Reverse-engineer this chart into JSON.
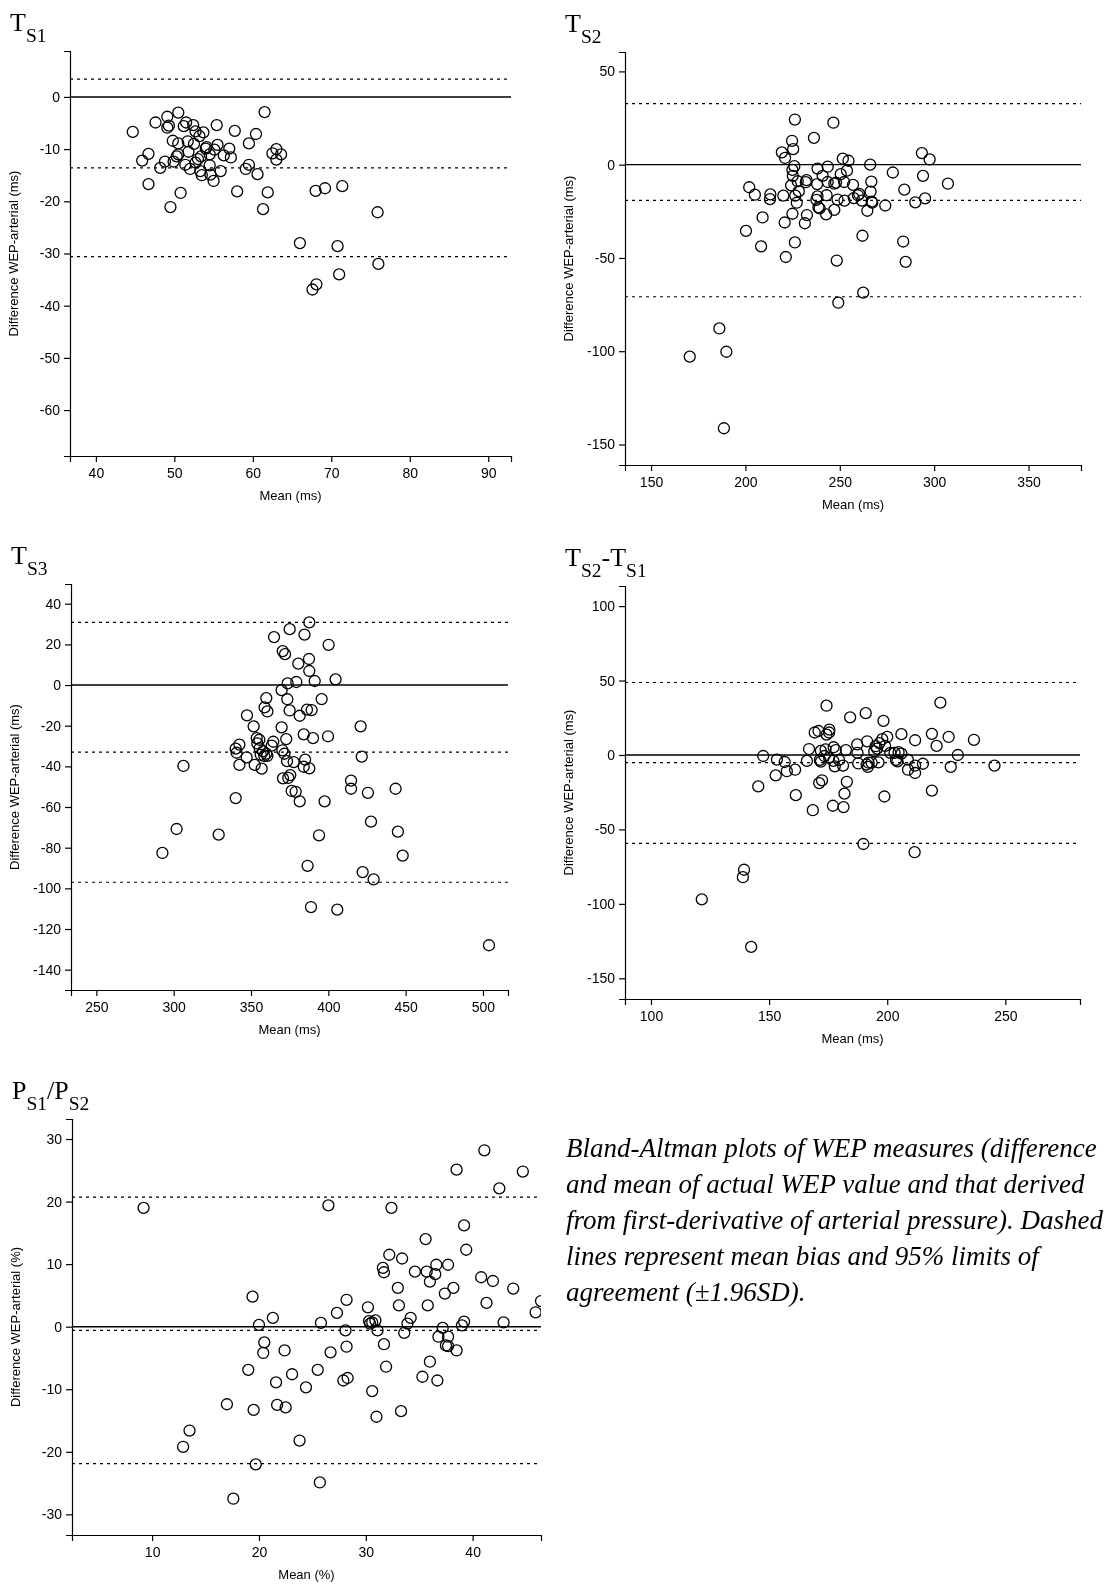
{
  "chart_data": [
    {
      "type": "scatter",
      "title": "T$_{S1}$",
      "xlabel": "Mean (ms)",
      "ylabel": "Difference WEP-arterial (ms)",
      "color": "#000000",
      "marker": "circle",
      "xlim": [
        36.7,
        92.9
      ],
      "ylim": [
        -68.8,
        8.8
      ],
      "xticks": [
        40,
        50,
        60,
        70,
        80,
        90
      ],
      "yticks": [
        -60,
        -50,
        -40,
        -30,
        -20,
        -10,
        0
      ],
      "x": [
        44.7,
        47.6,
        45.9,
        46.7,
        46.7,
        48.2,
        48.8,
        49.1,
        49.1,
        49.3,
        49.8,
        49.9,
        50.3,
        50.5,
        50.5,
        50.5,
        49.5,
        50.8,
        51.2,
        51.5,
        51.4,
        51.7,
        51.8,
        52.0,
        52.4,
        52.5,
        52.7,
        52.7,
        53.0,
        53.2,
        53.3,
        53.4,
        53.5,
        53.7,
        54.0,
        54.1,
        54.5,
        54.5,
        54.6,
        55.0,
        55.1,
        55.4,
        55.5,
        55.9,
        56.3,
        57.0,
        57.2,
        57.7,
        58.0,
        59.1,
        59.5,
        59.5,
        60.4,
        60.6,
        61.5,
        61.3,
        61.9,
        62.5,
        63.0,
        63.0,
        63.6,
        66.0,
        67.6,
        68.1,
        68.0,
        69.2,
        70.8,
        71.0,
        71.4,
        75.9,
        76.0
      ],
      "values": [
        -6.7,
        -4.9,
        -12.2,
        -10.9,
        -16.7,
        -13.6,
        -12.4,
        -3.8,
        -5.9,
        -5.5,
        -8.4,
        -12.4,
        -11.4,
        -11.0,
        -8.9,
        -3.0,
        -21.1,
        -18.4,
        -5.6,
        -4.9,
        -13.0,
        -8.5,
        -10.5,
        -13.8,
        -5.4,
        -9.0,
        -12.6,
        -6.6,
        -11.9,
        -7.5,
        -14.2,
        -11.4,
        -15.0,
        -6.8,
        -9.9,
        -9.6,
        -11.0,
        -13.1,
        -14.9,
        -16.1,
        -10.1,
        -5.4,
        -9.2,
        -14.2,
        -11.2,
        -9.9,
        -11.6,
        -6.5,
        -18.1,
        -13.8,
        -8.9,
        -13.0,
        -7.1,
        -14.8,
        -2.9,
        -21.5,
        -18.3,
        -10.8,
        -10.0,
        -12.0,
        -11.0,
        -28.0,
        -36.9,
        -35.9,
        -18.0,
        -17.5,
        -28.6,
        -34.0,
        -17.1,
        -22.1,
        -32.0
      ],
      "ref_lines": [
        {
          "axis": "y",
          "value": 0,
          "line_style": "solid"
        },
        {
          "axis": "y",
          "value": 3.4,
          "line_style": "dashed"
        },
        {
          "axis": "y",
          "value": -13.6,
          "line_style": "dashed"
        },
        {
          "axis": "y",
          "value": -30.6,
          "line_style": "dashed"
        }
      ]
    },
    {
      "type": "scatter",
      "title": "T$_{S2}$",
      "xlabel": "Mean (ms)",
      "ylabel": "Difference WEP-arterial (ms)",
      "color": "#000000",
      "marker": "circle",
      "xlim": [
        136.2,
        377.8
      ],
      "ylim": [
        -161,
        60.4
      ],
      "xticks": [
        150,
        200,
        250,
        300,
        350
      ],
      "yticks": [
        -150,
        -100,
        -50,
        0,
        50
      ],
      "x": [
        170.5,
        186.2,
        189.9,
        188.6,
        200.3,
        202.0,
        205.0,
        209.1,
        208.3,
        213.2,
        213.0,
        219.3,
        221.0,
        220.1,
        220.8,
        221.4,
        224.7,
        225.3,
        226.2,
        225.9,
        224.9,
        225.1,
        224.2,
        224.9,
        226.4,
        227.2,
        227.7,
        228.3,
        226.2,
        231.5,
        232.4,
        232.6,
        232.0,
        236.3,
        238.2,
        238.0,
        238.2,
        237.6,
        238.7,
        239.3,
        240.9,
        242.8,
        243.0,
        243.6,
        243.6,
        246.6,
        247.1,
        248.0,
        247.1,
        248.4,
        248.8,
        249.2,
        250.5,
        251.6,
        252.3,
        252.5,
        253.8,
        254.6,
        257.0,
        257.4,
        259.6,
        260.3,
        261.7,
        262.0,
        262.4,
        264.6,
        266.1,
        266.3,
        266.7,
        266.9,
        267.2,
        274.1,
        278.1,
        284.2,
        283.6,
        284.9,
        290.0,
        293.5,
        294.1,
        295.2,
        297.6,
        307.3
      ],
      "values": [
        -102.9,
        -87.8,
        -100.3,
        -141.3,
        -35.5,
        -12.1,
        -16.1,
        -28.3,
        -43.8,
        -15.9,
        -18.5,
        6.6,
        3.6,
        -16.6,
        -31.0,
        -49.5,
        12.8,
        8.3,
        24.2,
        -0.8,
        -2.8,
        -6.0,
        -11.1,
        -26.3,
        -16.6,
        -20.4,
        -8.9,
        -14.2,
        -41.7,
        -31.4,
        -8.3,
        -27.0,
        -9.4,
        14.4,
        -2.1,
        -10.4,
        -17.0,
        -18.9,
        -22.9,
        -23.4,
        -6.0,
        -26.6,
        -16.4,
        -1.1,
        -9.3,
        22.5,
        -10.2,
        -9.6,
        -24.2,
        -51.4,
        -18.7,
        -74.0,
        -5.1,
        3.2,
        -9.3,
        -19.3,
        -3.2,
        2.1,
        -10.8,
        -17.9,
        -16.4,
        -15.7,
        -19.3,
        -38.1,
        -68.6,
        -24.7,
        0.0,
        -14.5,
        -9.1,
        -19.8,
        -20.4,
        -21.9,
        -4.2,
        -13.4,
        -41.2,
        -52.1,
        -20.2,
        6.2,
        -6.0,
        -18.1,
        2.8,
        -10.2
      ],
      "ref_lines": [
        {
          "axis": "y",
          "value": 0,
          "line_style": "solid"
        },
        {
          "axis": "y",
          "value": 32.7,
          "line_style": "dashed"
        },
        {
          "axis": "y",
          "value": -19.1,
          "line_style": "dashed"
        },
        {
          "axis": "y",
          "value": -70.8,
          "line_style": "dashed"
        }
      ]
    },
    {
      "type": "scatter",
      "title": "T$_{S3}$",
      "xlabel": "Mean (ms)",
      "ylabel": "Difference WEP-arterial (ms)",
      "color": "#000000",
      "marker": "circle",
      "xlim": [
        233.6,
        516.2
      ],
      "ylim": [
        -150,
        49.7
      ],
      "xticks": [
        250,
        300,
        350,
        400,
        450,
        500
      ],
      "yticks": [
        -140,
        -120,
        -100,
        -80,
        -60,
        -40,
        -20,
        0,
        20,
        40
      ],
      "x": [
        292.7,
        301.9,
        306.3,
        329.1,
        340.1,
        340.1,
        340.7,
        342.5,
        342.5,
        347.4,
        347.2,
        351.7,
        352.4,
        353.7,
        354.1,
        355.4,
        355.6,
        356.3,
        356.9,
        357.8,
        358.6,
        358.8,
        359.9,
        360.6,
        359.9,
        360.6,
        363.4,
        364.4,
        364.9,
        369.8,
        369.8,
        370.3,
        370.5,
        371.6,
        370.7,
        372.0,
        372.8,
        373.5,
        373.7,
        373.3,
        374.1,
        375.0,
        375.0,
        375.4,
        376.3,
        377.6,
        378.9,
        379.3,
        380.6,
        381.5,
        381.5,
        384.1,
        384.6,
        385.0,
        384.1,
        386.2,
        386.6,
        387.7,
        387.5,
        387.7,
        387.7,
        388.8,
        389.2,
        390.1,
        391.2,
        395.7,
        394.0,
        397.6,
        399.8,
        400.2,
        404.7,
        405.8,
        414.7,
        414.7,
        420.9,
        421.6,
        422.2,
        425.6,
        427.6,
        429.3,
        443.5,
        445.0,
        448.1,
        503.9
      ],
      "values": [
        -82.6,
        -70.8,
        -39.8,
        -73.6,
        -55.6,
        -31.3,
        -33.3,
        -29.3,
        -39.3,
        -14.9,
        -35.6,
        -20.3,
        -39.3,
        -26.1,
        -28.7,
        -26.9,
        -31.1,
        -34.3,
        -41.1,
        -32.6,
        -34.9,
        -11.0,
        -6.4,
        -13.0,
        -33.8,
        -34.8,
        -29.8,
        -27.9,
        23.6,
        -2.5,
        -20.8,
        -32.1,
        16.7,
        -33.8,
        -45.9,
        15.2,
        -26.6,
        -7.0,
        0.8,
        -37.4,
        -45.7,
        27.5,
        -12.5,
        -44.3,
        -52.1,
        -37.9,
        -52.5,
        1.5,
        10.5,
        -15.1,
        -57.2,
        -24.3,
        24.8,
        -36.7,
        -40.2,
        -12.1,
        -88.9,
        -41.0,
        12.8,
        30.8,
        6.9,
        -109.2,
        -12.3,
        -26.1,
        2.0,
        -6.9,
        -73.9,
        -57.2,
        -25.2,
        19.8,
        2.8,
        -110.5,
        -47.0,
        -51.0,
        -20.3,
        -35.2,
        -92.0,
        -53.0,
        -67.2,
        -95.6,
        -51.0,
        -72.1,
        -83.9,
        -128.0
      ],
      "ref_lines": [
        {
          "axis": "y",
          "value": 0,
          "line_style": "solid"
        },
        {
          "axis": "y",
          "value": 30.8,
          "line_style": "dashed"
        },
        {
          "axis": "y",
          "value": -33.0,
          "line_style": "dashed"
        },
        {
          "axis": "y",
          "value": -97.0,
          "line_style": "dashed"
        }
      ]
    },
    {
      "type": "scatter",
      "title": "T$_{S2}$-T$_{S1}$",
      "xlabel": "Mean (ms)",
      "ylabel": "Difference WEP-arterial (ms)",
      "color": "#000000",
      "marker": "circle",
      "xlim": [
        89.0,
        281.6
      ],
      "ylim": [
        -163.9,
        113.5
      ],
      "xticks": [
        100,
        150,
        200,
        250
      ],
      "yticks": [
        -150,
        -100,
        -50,
        0,
        50,
        100
      ],
      "x": [
        121.5,
        139.4,
        138.9,
        142.4,
        145.4,
        147.5,
        153.3,
        152.8,
        156.6,
        157.5,
        161.0,
        161.3,
        166.0,
        166.9,
        168.5,
        169.3,
        170.9,
        171.2,
        172.4,
        171.9,
        171.5,
        171.9,
        173.4,
        173.9,
        174.3,
        174.3,
        175.5,
        175.4,
        175.4,
        177.2,
        177.3,
        177.8,
        178.2,
        177.0,
        179.6,
        181.3,
        181.9,
        181.5,
        182.5,
        182.9,
        184.3,
        187.3,
        187.4,
        187.7,
        189.9,
        190.9,
        191.5,
        191.3,
        191.8,
        192.1,
        193.4,
        194.5,
        195.1,
        195.7,
        196.3,
        196.7,
        197.9,
        198.4,
        198.8,
        199.1,
        200.0,
        201.3,
        203.1,
        203.7,
        204.3,
        204.8,
        206.0,
        206.0,
        208.7,
        208.8,
        211.6,
        211.8,
        211.8,
        211.8,
        215.1,
        218.9,
        218.9,
        220.9,
        222.5,
        226.0,
        226.9,
        229.9,
        236.7,
        245.4
      ],
      "values": [
        -97.0,
        -77.1,
        -82.1,
        -128.9,
        -21.1,
        -0.7,
        -3.1,
        -13.7,
        -4.7,
        -10.9,
        -9.9,
        -27.0,
        -4.0,
        4.0,
        -37.1,
        15.1,
        16.1,
        -18.9,
        -17.0,
        2.8,
        -3.3,
        -4.5,
        -0.7,
        3.8,
        33.1,
        13.7,
        17.0,
        15.1,
        -1.9,
        -4.0,
        5.2,
        -7.6,
        3.3,
        -34.1,
        -3.3,
        -7.1,
        -26.0,
        -35.0,
        3.3,
        -18.0,
        25.3,
        7.1,
        1.4,
        -5.7,
        -59.8,
        28.1,
        9.2,
        -6.4,
        -8.0,
        -5.2,
        -5.2,
        2.4,
        5.9,
        4.3,
        -5.0,
        8.0,
        10.6,
        22.9,
        -27.9,
        6.1,
        12.1,
        1.4,
        1.4,
        -3.3,
        -4.3,
        1.9,
        14.0,
        0.9,
        -3.1,
        -9.9,
        -65.3,
        9.9,
        -7.1,
        -12.1,
        -5.9,
        14.2,
        -23.9,
        6.1,
        35.2,
        12.1,
        -8.0,
        0.0,
        10.2,
        -7.1
      ],
      "ref_lines": [
        {
          "axis": "y",
          "value": 0,
          "line_style": "solid"
        },
        {
          "axis": "y",
          "value": 48.7,
          "line_style": "dashed"
        },
        {
          "axis": "y",
          "value": -5.2,
          "line_style": "dashed"
        },
        {
          "axis": "y",
          "value": -59.4,
          "line_style": "dashed"
        }
      ]
    },
    {
      "type": "scatter",
      "title": "P$_{S1}$/P$_{S2}$",
      "xlabel": "Mean (%)",
      "ylabel": "Difference WEP-arterial (%)",
      "color": "#000000",
      "marker": "circle",
      "xlim": [
        2.5,
        46.4
      ],
      "ylim": [
        -33.3,
        33.2
      ],
      "xticks": [
        10,
        20,
        30,
        40
      ],
      "yticks": [
        -30,
        -20,
        -10,
        0,
        10,
        20,
        30
      ],
      "x": [
        9.2,
        12.9,
        13.5,
        17.0,
        17.6,
        19.0,
        19.4,
        19.5,
        19.7,
        20.0,
        20.5,
        20.4,
        21.3,
        21.6,
        21.7,
        22.4,
        22.5,
        23.1,
        23.8,
        24.4,
        25.5,
        25.7,
        25.8,
        26.5,
        26.7,
        27.3,
        27.9,
        28.1,
        28.2,
        28.2,
        28.3,
        30.2,
        30.3,
        30.4,
        30.6,
        30.6,
        30.9,
        31.0,
        31.1,
        31.6,
        31.7,
        31.7,
        31.9,
        32.2,
        32.4,
        33.0,
        33.1,
        33.3,
        33.4,
        33.6,
        33.9,
        34.2,
        34.6,
        35.3,
        35.6,
        35.7,
        35.8,
        36.0,
        36.0,
        36.5,
        36.6,
        36.7,
        36.8,
        37.2,
        37.4,
        37.5,
        37.7,
        37.7,
        37.7,
        38.2,
        38.5,
        38.5,
        39.0,
        39.2,
        39.2,
        39.4,
        40.8,
        41.1,
        41.3,
        41.9,
        42.5,
        42.9,
        43.8,
        44.7,
        45.9,
        46.4
      ],
      "values": [
        19.0,
        -19.2,
        -16.6,
        -12.4,
        -27.5,
        -6.9,
        4.8,
        -13.3,
        -22.0,
        0.3,
        -2.5,
        -4.2,
        1.4,
        -8.9,
        -12.5,
        -3.8,
        -12.9,
        -7.6,
        -18.2,
        -9.7,
        -6.9,
        -24.9,
        0.6,
        19.4,
        -4.1,
        2.2,
        -8.6,
        -0.6,
        4.3,
        -3.2,
        -8.2,
        3.1,
        0.9,
        0.5,
        -10.3,
        0.7,
        1.0,
        -14.4,
        -0.6,
        9.4,
        8.7,
        -2.8,
        -6.4,
        11.5,
        19.0,
        6.2,
        3.4,
        -13.5,
        10.9,
        -1.0,
        0.5,
        1.4,
        8.8,
        -8.0,
        14.0,
        8.8,
        3.4,
        -5.6,
        7.2,
        8.4,
        9.9,
        -8.6,
        -1.6,
        -0.2,
        5.3,
        -3.0,
        9.9,
        -1.6,
        -3.1,
        6.2,
        25.1,
        -3.8,
        0.2,
        0.8,
        16.2,
        12.3,
        7.9,
        28.2,
        3.8,
        7.3,
        22.1,
        0.7,
        6.1,
        24.8,
        2.3,
        4.1
      ],
      "ref_lines": [
        {
          "axis": "y",
          "value": 0,
          "line_style": "solid"
        },
        {
          "axis": "y",
          "value": 20.7,
          "line_style": "dashed"
        },
        {
          "axis": "y",
          "value": -0.6,
          "line_style": "dashed"
        },
        {
          "axis": "y",
          "value": -21.9,
          "line_style": "dashed"
        }
      ]
    },
    {
      "type": "other",
      "annotations": [
        "Bland-Altman plots of WEP measures (difference and mean of actual WEP value and that derived from first-derivative of arterial pressure). Dashed lines represent mean bias and 95% limits of agreement (±1.96SD)."
      ]
    }
  ]
}
